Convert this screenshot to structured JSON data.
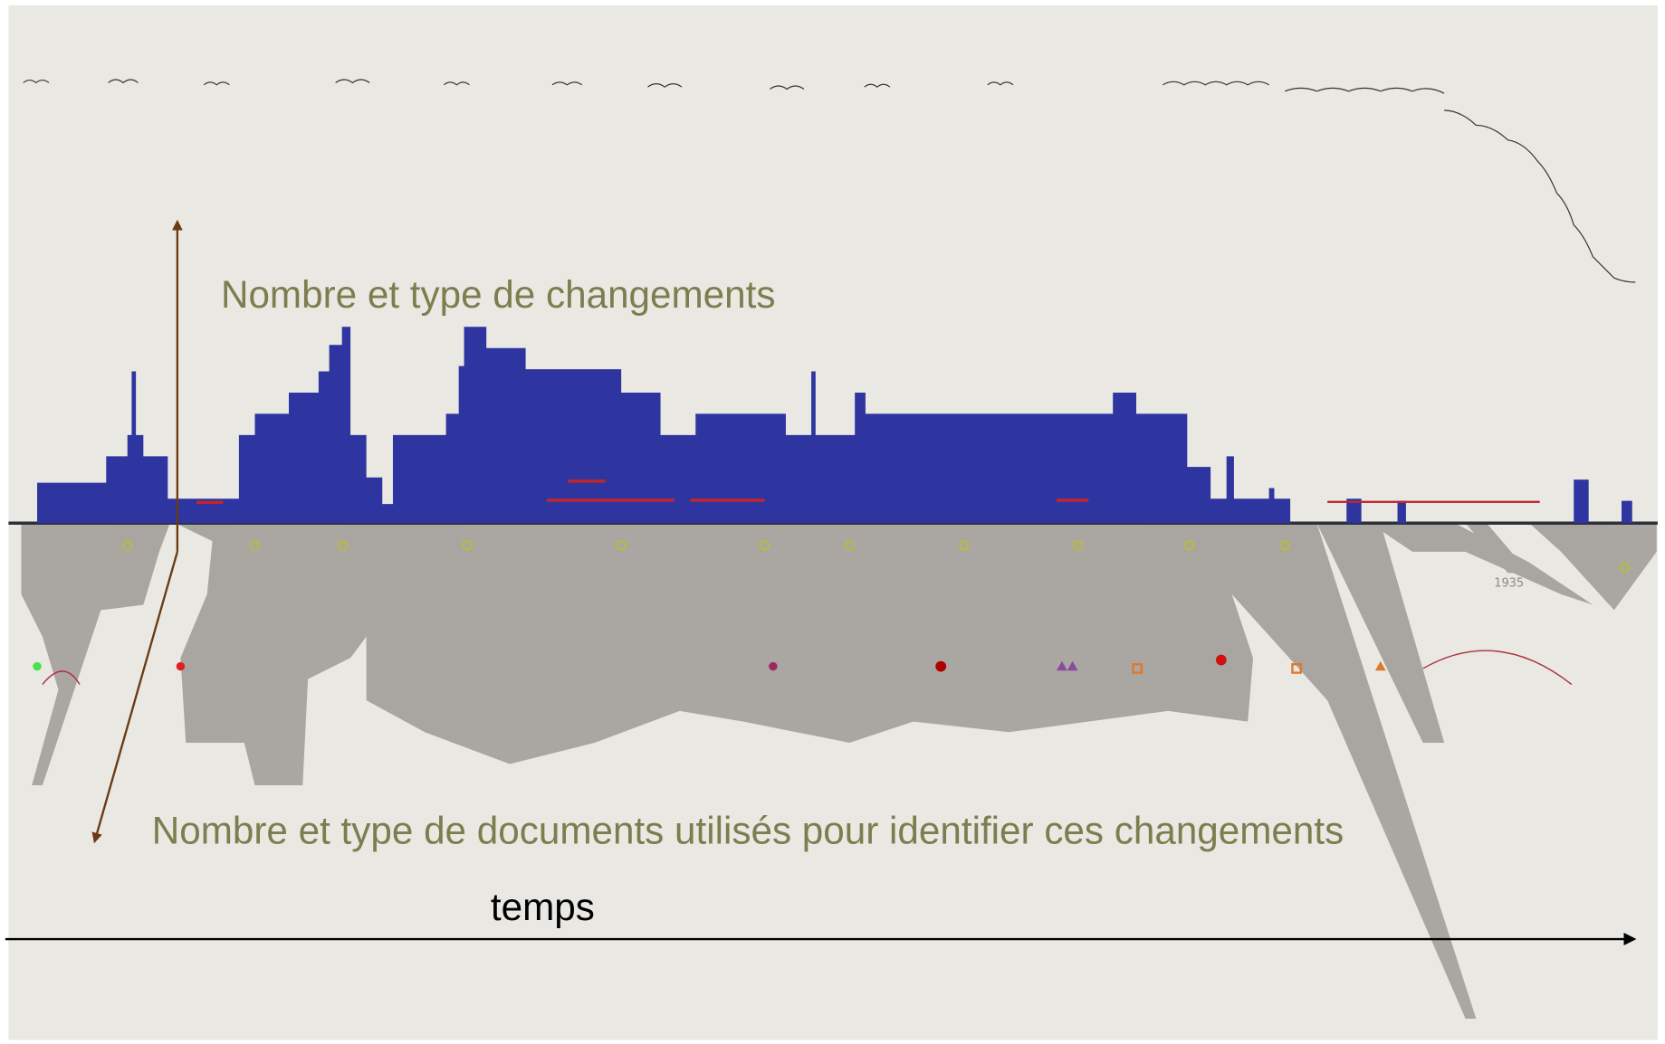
{
  "annotations": {
    "changes": "Nombre et type de changements",
    "documents": "Nombre et type de documents utilisés pour identifier ces changements",
    "time": "temps"
  },
  "tick_labels": [
    "1935"
  ]
}
